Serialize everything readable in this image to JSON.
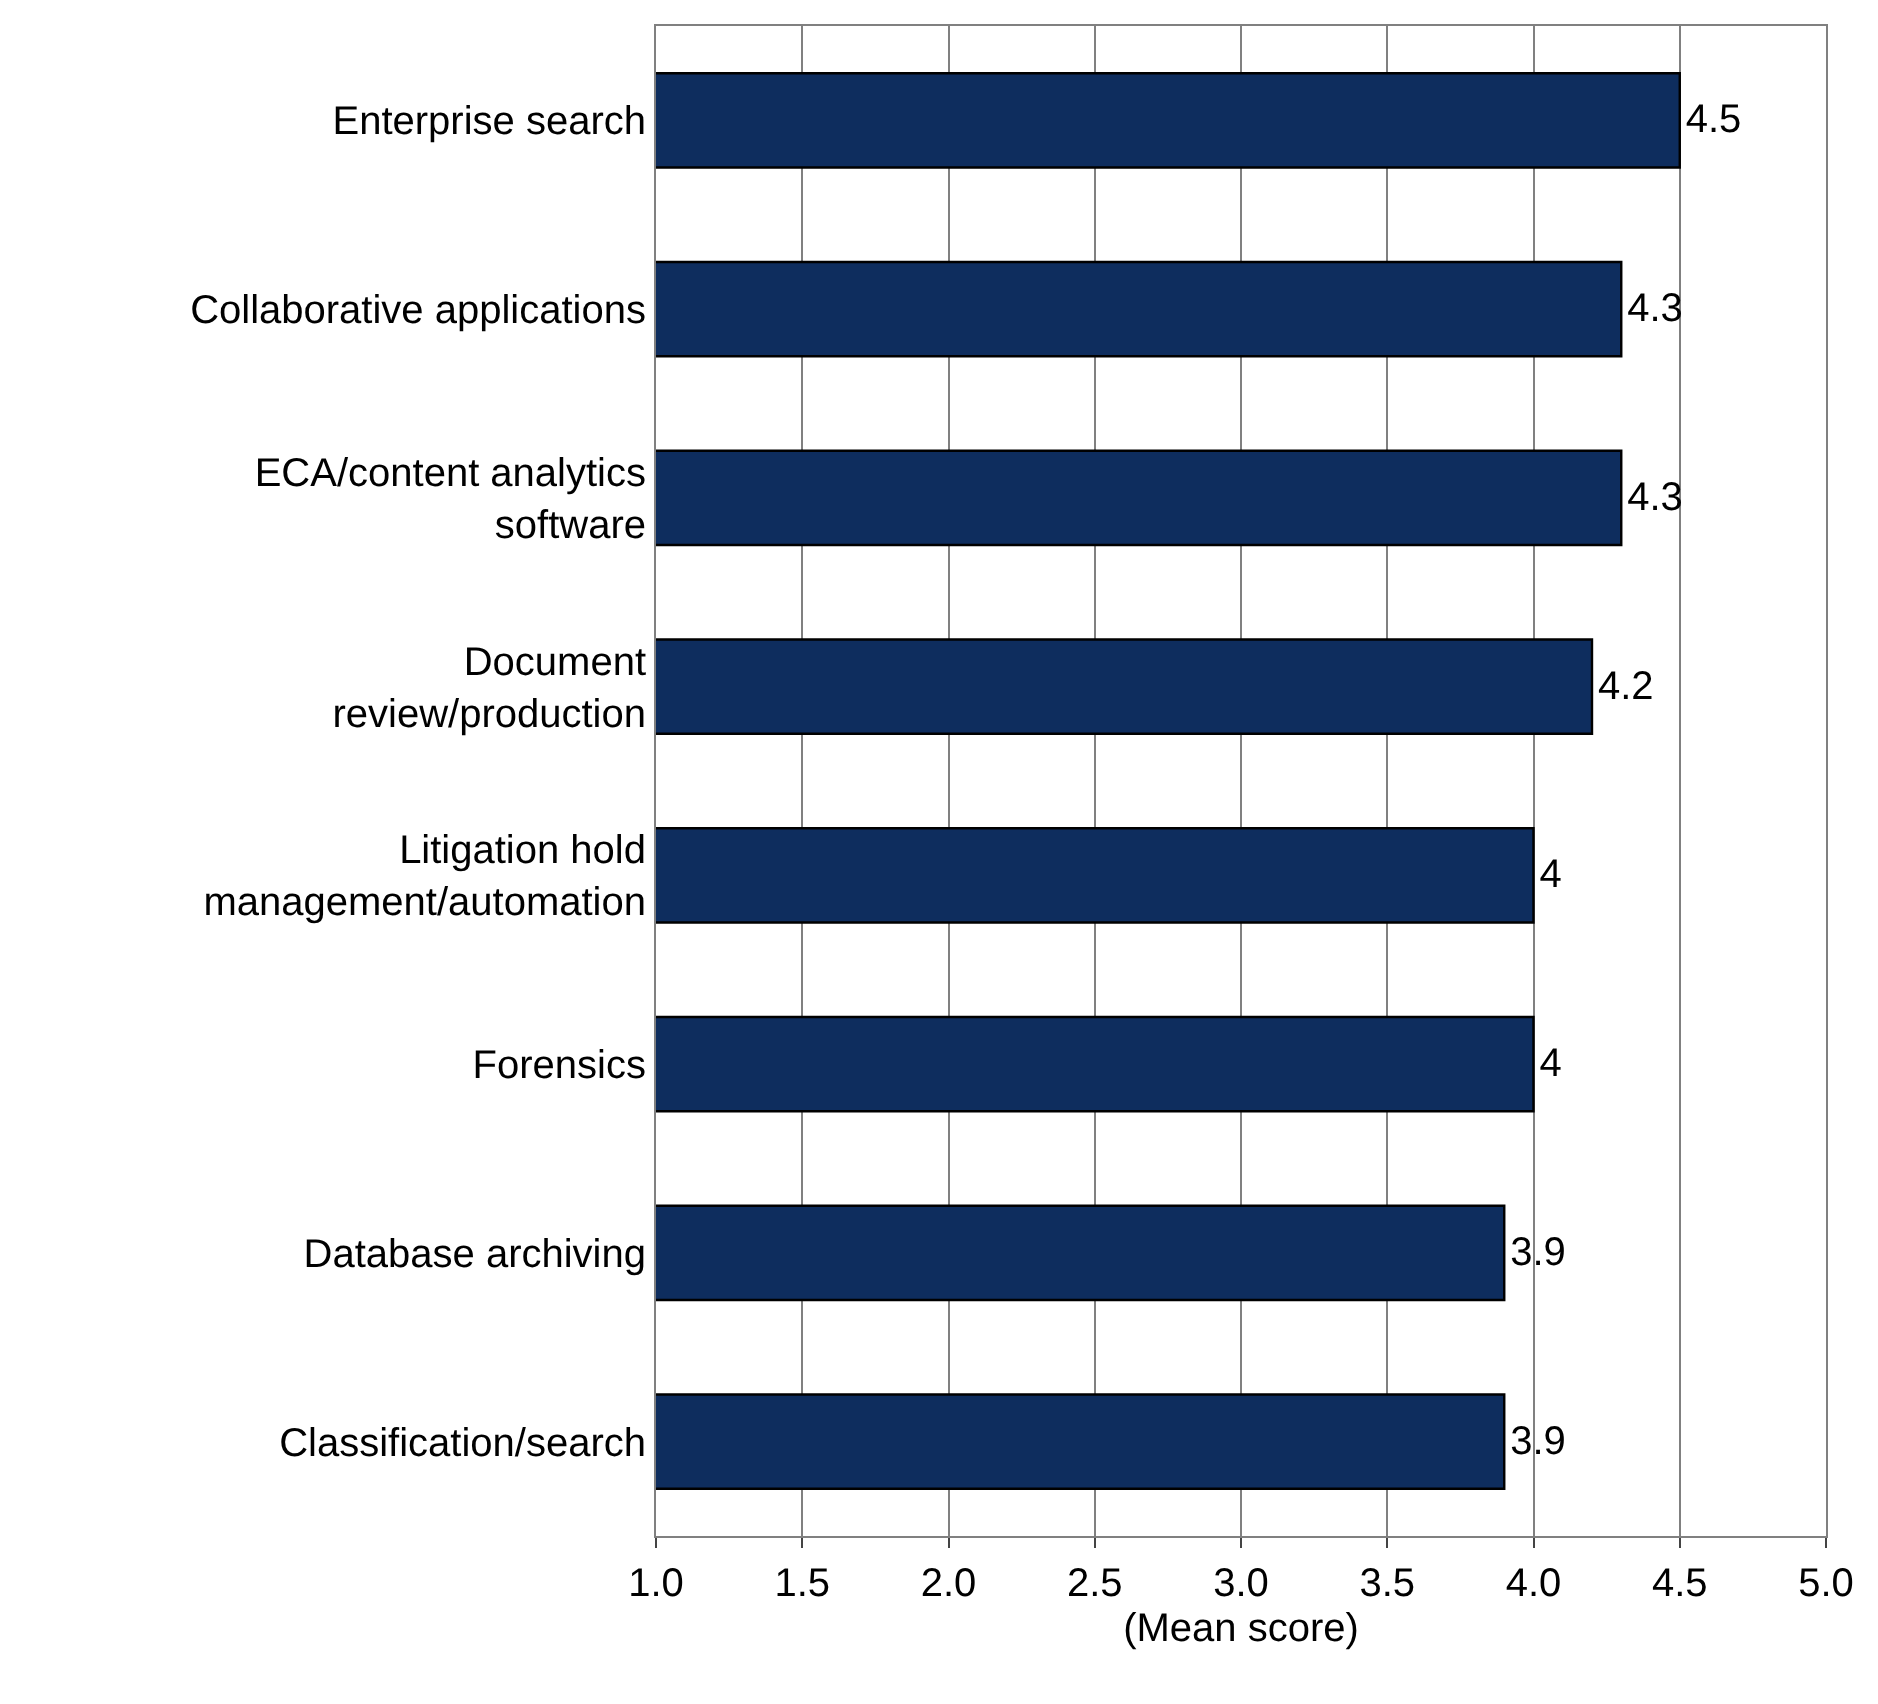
{
  "chart_data": {
    "type": "bar",
    "orientation": "horizontal",
    "xlabel": "(Mean score)",
    "categories": [
      "Enterprise search",
      "Collaborative applications",
      "ECA/content analytics\nsoftware",
      "Document\nreview/production",
      "Litigation hold\nmanagement/automation",
      "Forensics",
      "Database archiving",
      "Classification/search"
    ],
    "values": [
      4.5,
      4.3,
      4.3,
      4.2,
      4,
      4,
      3.9,
      3.9
    ],
    "color": "#0e2d5e",
    "xlim": [
      1,
      5
    ],
    "xticks": [
      {
        "value": 1,
        "label": "1.0"
      },
      {
        "value": 1.5,
        "label": "1.5"
      },
      {
        "value": 2,
        "label": "2.0"
      },
      {
        "value": 2.5,
        "label": "2.5"
      },
      {
        "value": 3,
        "label": "3.0"
      },
      {
        "value": 3.5,
        "label": "3.5"
      },
      {
        "value": 4,
        "label": "4.0"
      },
      {
        "value": 4.5,
        "label": "4.5"
      },
      {
        "value": 5,
        "label": "5.0"
      }
    ],
    "grid": "x",
    "data_labels": true
  }
}
